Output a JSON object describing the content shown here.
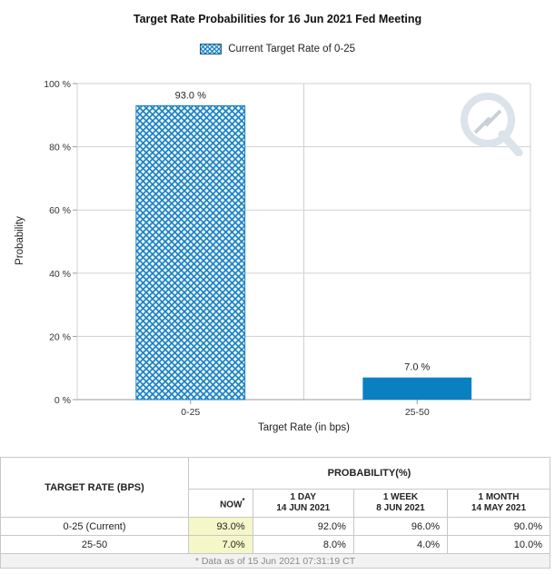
{
  "chart_data": {
    "type": "bar",
    "title": "Target Rate Probabilities for 16 Jun 2021 Fed Meeting",
    "legend": [
      "Current Target Rate of 0-25"
    ],
    "legend_position": "top-center",
    "categories": [
      "0-25",
      "25-50"
    ],
    "values": [
      93.0,
      7.0
    ],
    "value_labels": [
      "93.0 %",
      "7.0 %"
    ],
    "bar_styles": [
      "crosshatch",
      "solid"
    ],
    "colors": {
      "bar_fill": "#0a7fc2",
      "bar_hatch_bg": "#e8f4fb",
      "bar_hatch_line": "#1a7fc0",
      "grid": "#d0d0d0",
      "axis": "#999999"
    },
    "xlabel": "Target Rate (in bps)",
    "ylabel": "Probability",
    "ylim": [
      0,
      100
    ],
    "yticks": [
      0,
      20,
      40,
      60,
      80,
      100
    ],
    "ytick_labels": [
      "0 %",
      "20 %",
      "40 %",
      "60 %",
      "80 %",
      "100 %"
    ],
    "grid": true
  },
  "table": {
    "left_header": "TARGET RATE (BPS)",
    "prob_header": "PROBABILITY(%)",
    "columns": [
      {
        "line1": "NOW",
        "marker": "*",
        "line2": ""
      },
      {
        "line1": "1 DAY",
        "line2": "14 JUN 2021"
      },
      {
        "line1": "1 WEEK",
        "line2": "8 JUN 2021"
      },
      {
        "line1": "1 MONTH",
        "line2": "14 MAY 2021"
      }
    ],
    "rows": [
      {
        "label": "0-25 (Current)",
        "values": [
          "93.0%",
          "92.0%",
          "96.0%",
          "90.0%"
        ]
      },
      {
        "label": "25-50",
        "values": [
          "7.0%",
          "8.0%",
          "4.0%",
          "10.0%"
        ]
      }
    ],
    "footnote": "* Data as of 15 Jun 2021 07:31:19 CT"
  },
  "watermark_icon": "cme-logo-icon"
}
